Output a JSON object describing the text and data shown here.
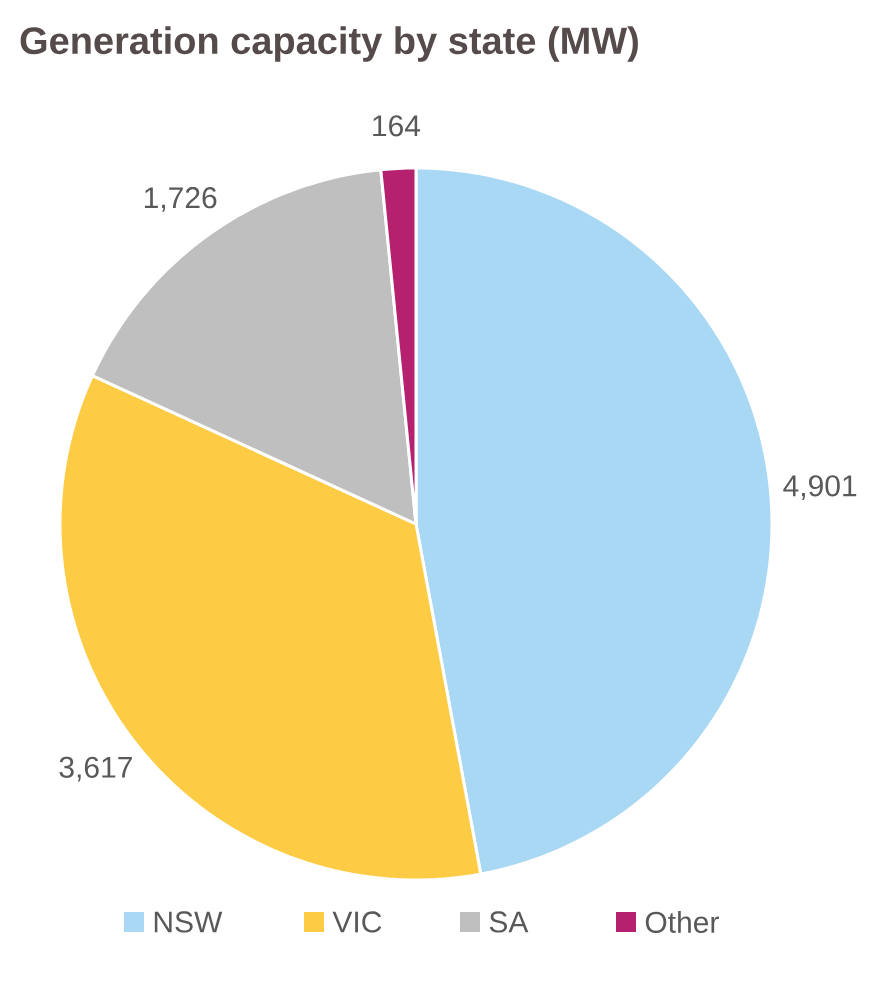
{
  "chart_data": {
    "type": "pie",
    "title": "Generation capacity by state (MW)",
    "categories": [
      "NSW",
      "VIC",
      "SA",
      "Other"
    ],
    "values": [
      4901,
      3617,
      1726,
      164
    ],
    "value_labels": [
      "4,901",
      "3,617",
      "1,726",
      "164"
    ],
    "colors": [
      "#a9d8f5",
      "#fecb45",
      "#bfbfbf",
      "#b5206f"
    ],
    "legend": "bottom"
  }
}
